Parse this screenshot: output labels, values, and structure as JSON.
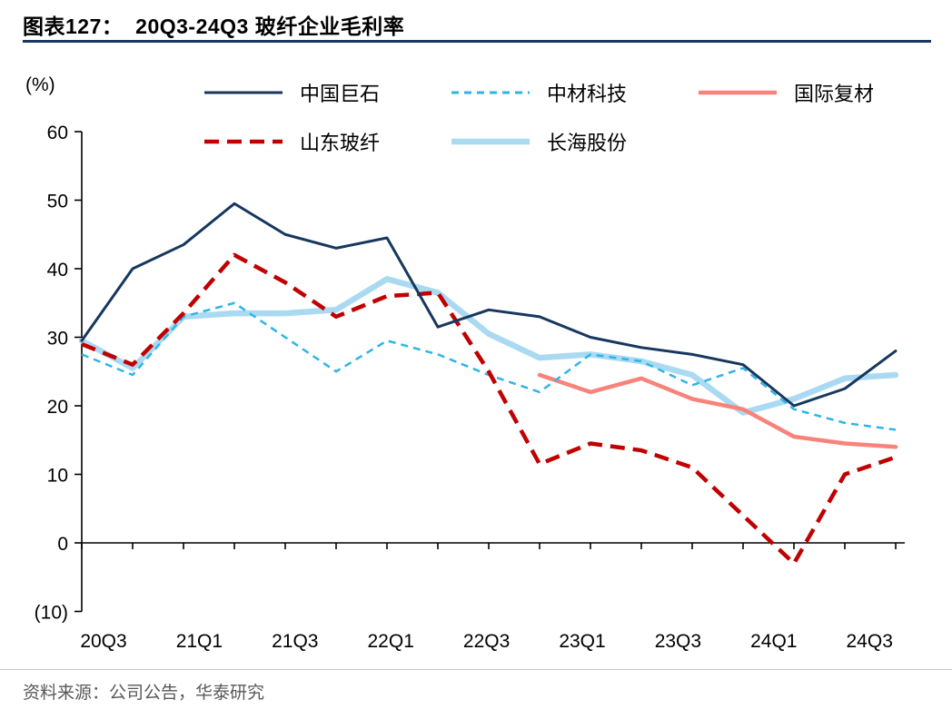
{
  "header": {
    "title": "图表127：  20Q3-24Q3 玻纤企业毛利率"
  },
  "footer": {
    "source": "资料来源：公司公告，华泰研究"
  },
  "chart_data": {
    "type": "line",
    "title": "20Q3-24Q3 玻纤企业毛利率",
    "unit_label": "(%)",
    "x": [
      "20Q3",
      "20Q4",
      "21Q1",
      "21Q2",
      "21Q3",
      "21Q4",
      "22Q1",
      "22Q2",
      "22Q3",
      "22Q4",
      "23Q1",
      "23Q2",
      "23Q3",
      "23Q4",
      "24Q1",
      "24Q2",
      "24Q3"
    ],
    "x_tick_labels": [
      "20Q3",
      "21Q1",
      "21Q3",
      "22Q1",
      "22Q3",
      "23Q1",
      "23Q3",
      "24Q1",
      "24Q3"
    ],
    "x_tick_indices": [
      0,
      2,
      4,
      6,
      8,
      10,
      12,
      14,
      16
    ],
    "ylim": [
      -10,
      60
    ],
    "y_ticks": [
      60,
      50,
      40,
      30,
      20,
      10,
      0,
      -10
    ],
    "y_tick_labels": [
      "60",
      "50",
      "40",
      "30",
      "20",
      "10",
      "0",
      "(10)"
    ],
    "grid": false,
    "legend_position": "top",
    "series": [
      {
        "name": "中国巨石",
        "color": "#17375e",
        "dash": null,
        "width": 3,
        "values": [
          29.5,
          40,
          43.5,
          49.5,
          45,
          43,
          44.5,
          31.5,
          34,
          33,
          30,
          28.5,
          27.5,
          26,
          20,
          22.5,
          28
        ]
      },
      {
        "name": "中材科技",
        "color": "#2fb4e9",
        "dash": "8 6",
        "width": 2.5,
        "values": [
          27.5,
          24.5,
          33,
          35,
          30,
          25,
          29.5,
          27.5,
          24.5,
          22,
          27.5,
          26.5,
          23,
          25.5,
          19.5,
          17.5,
          16.5
        ]
      },
      {
        "name": "国际复材",
        "color": "#f8837b",
        "dash": null,
        "width": 4.5,
        "values": [
          null,
          null,
          null,
          null,
          null,
          null,
          null,
          null,
          null,
          24.5,
          22,
          24,
          21,
          19.5,
          15.5,
          14.5,
          14
        ]
      },
      {
        "name": "山东玻纤",
        "color": "#c00000",
        "dash": "16 9",
        "width": 4.5,
        "values": [
          29,
          26,
          33.5,
          42,
          38,
          33,
          36,
          36.5,
          25,
          11.5,
          14.5,
          13.5,
          11,
          4,
          -3,
          10,
          12.5
        ]
      },
      {
        "name": "长海股份",
        "color": "#aadaf2",
        "dash": null,
        "width": 6.5,
        "values": [
          29.5,
          25.5,
          33,
          33.5,
          33.5,
          34,
          38.5,
          36.5,
          30.5,
          27,
          27.5,
          26.5,
          24.5,
          19,
          21,
          24,
          24.5
        ]
      }
    ]
  }
}
